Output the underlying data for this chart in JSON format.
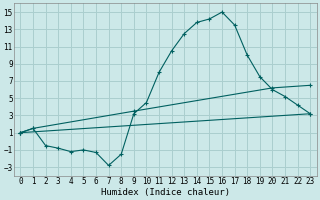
{
  "xlabel": "Humidex (Indice chaleur)",
  "background_color": "#cce8e8",
  "grid_color": "#aacece",
  "line_color": "#006060",
  "xlim": [
    -0.5,
    23.5
  ],
  "ylim": [
    -4,
    16
  ],
  "xticks": [
    0,
    1,
    2,
    3,
    4,
    5,
    6,
    7,
    8,
    9,
    10,
    11,
    12,
    13,
    14,
    15,
    16,
    17,
    18,
    19,
    20,
    21,
    22,
    23
  ],
  "yticks": [
    -3,
    -1,
    1,
    3,
    5,
    7,
    9,
    11,
    13,
    15
  ],
  "series1_x": [
    0,
    1,
    2,
    3,
    4,
    5,
    6,
    7,
    8,
    9,
    10,
    11,
    12,
    13,
    14,
    15,
    16,
    17,
    18,
    19,
    20,
    21,
    22,
    23
  ],
  "series1_y": [
    1,
    1.5,
    -0.5,
    -0.8,
    -1.2,
    -1.0,
    -1.3,
    -2.8,
    -1.5,
    3.2,
    4.5,
    8.0,
    10.5,
    12.5,
    13.8,
    14.2,
    15.0,
    13.5,
    10.0,
    7.5,
    6.0,
    5.2,
    4.2,
    3.2
  ],
  "series2_x": [
    0,
    23
  ],
  "series2_y": [
    1,
    3.2
  ],
  "series3_x": [
    0,
    1,
    9,
    20,
    23
  ],
  "series3_y": [
    1,
    1.5,
    3.5,
    6.2,
    6.5
  ],
  "xlabel_fontsize": 6.5,
  "tick_fontsize": 5.5
}
